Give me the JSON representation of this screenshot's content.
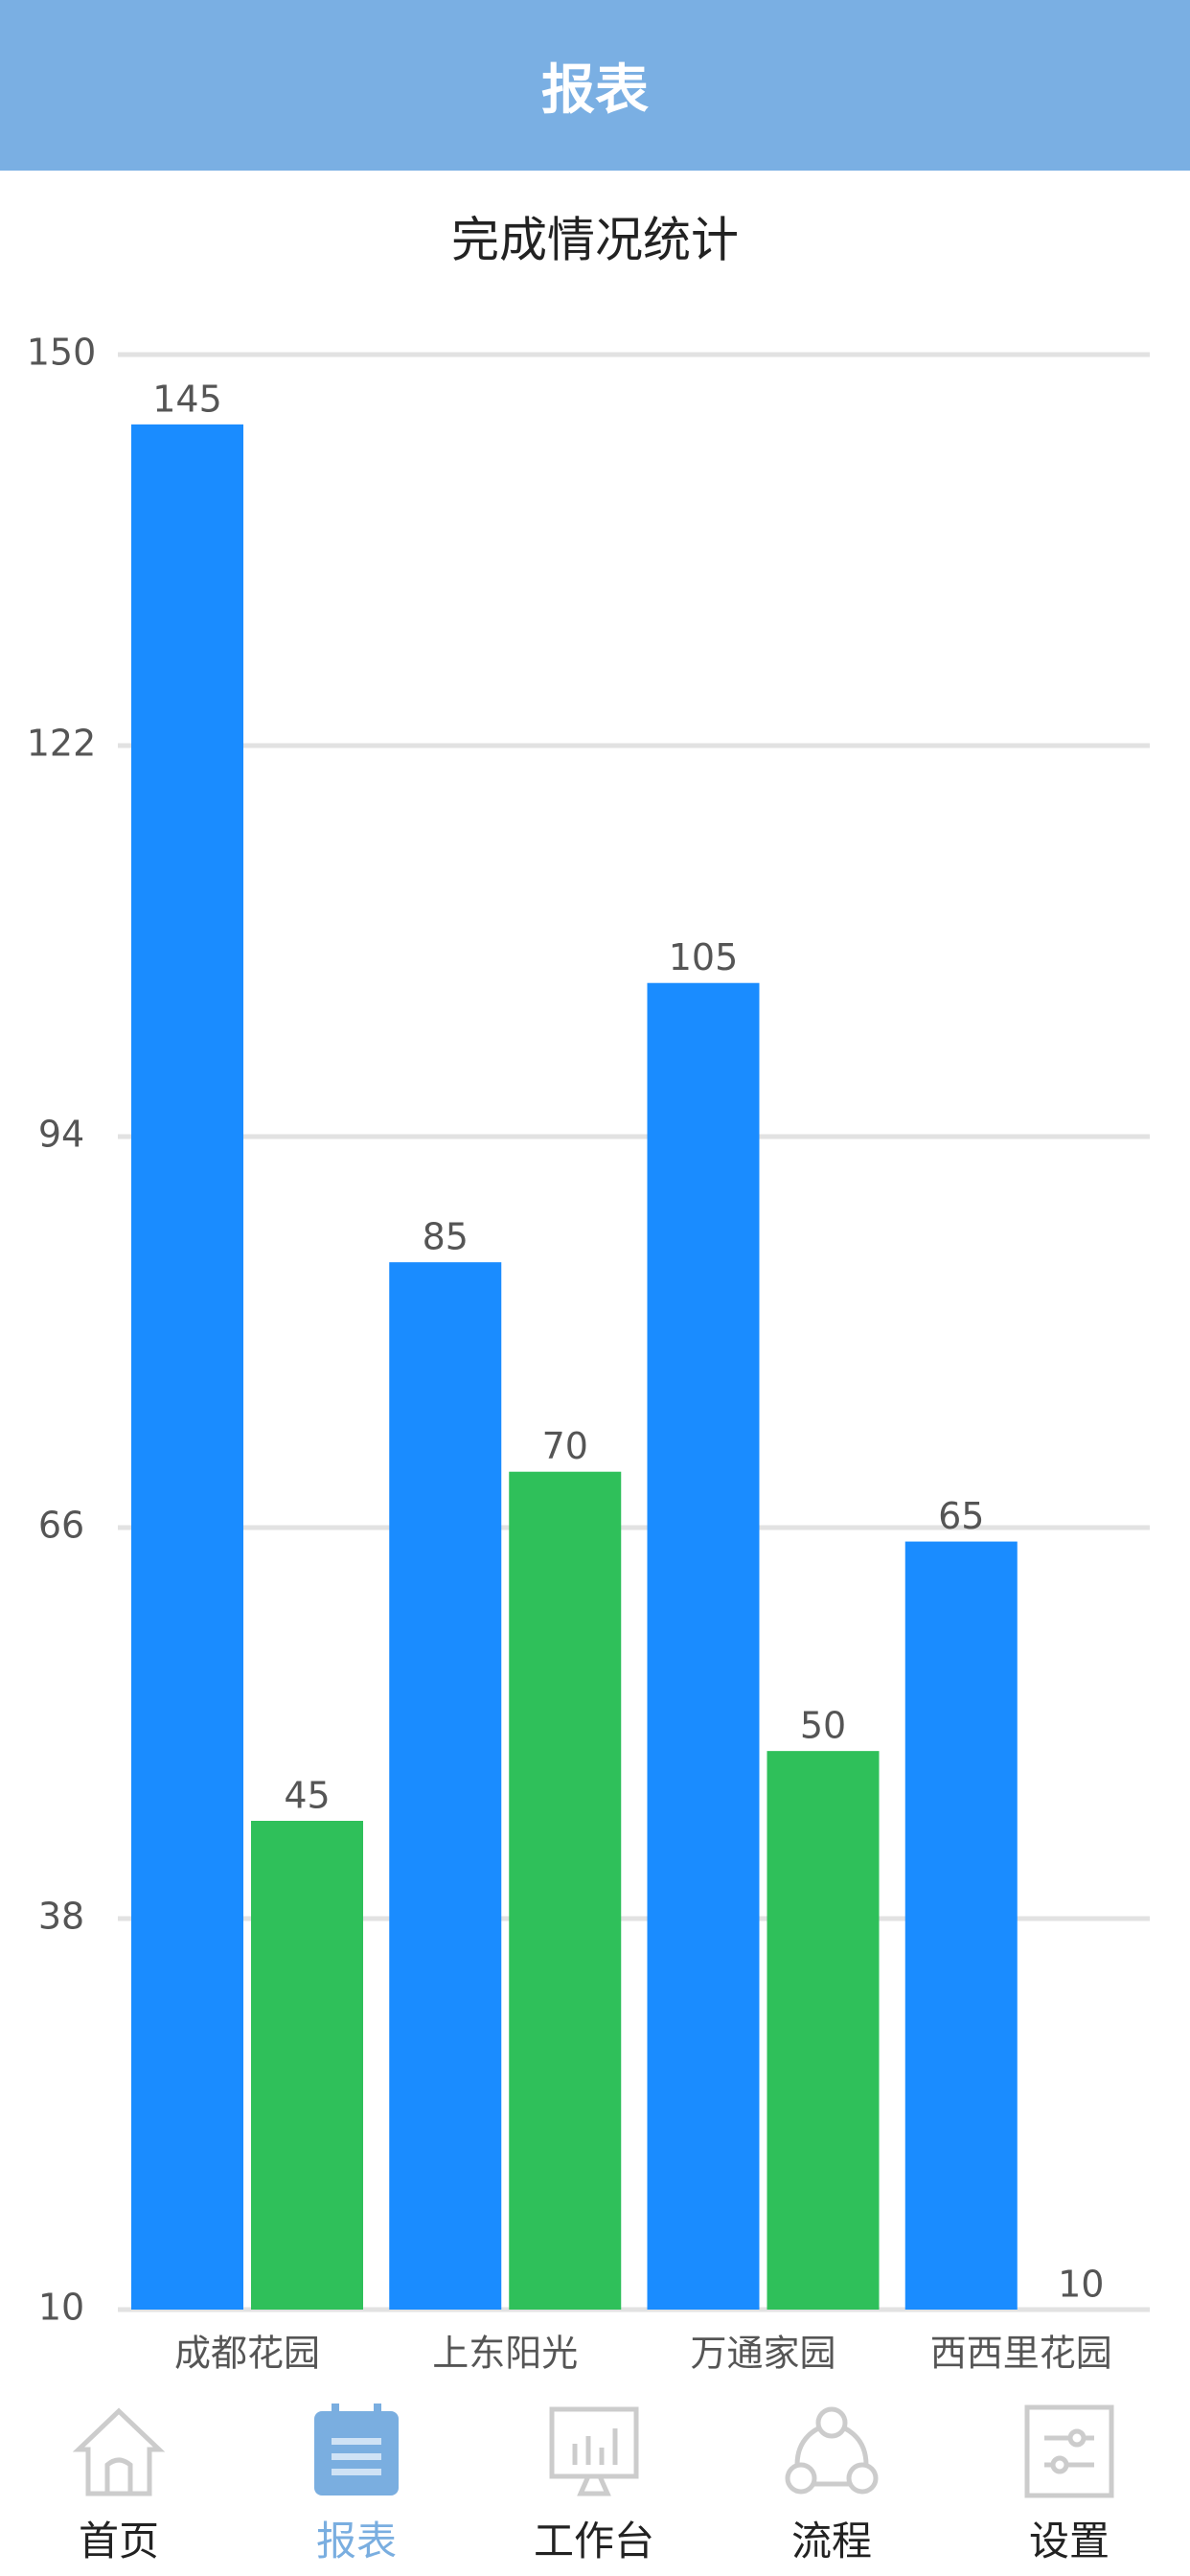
{
  "header": {
    "title": "报表"
  },
  "chart_data": {
    "type": "bar",
    "title": "完成情况统计",
    "categories": [
      "成都花园",
      "上东阳光",
      "万通家园",
      "西西里花园"
    ],
    "series": [
      {
        "color": "#1a8cff",
        "values": [
          145,
          85,
          105,
          65
        ]
      },
      {
        "color": "#2fc05a",
        "values": [
          45,
          70,
          50,
          10
        ]
      }
    ],
    "ylim": [
      10,
      150
    ],
    "yticks": [
      10,
      38,
      66,
      94,
      122,
      150
    ],
    "grid": true
  },
  "tab_bar": {
    "items": [
      "首页",
      "报表",
      "工作台",
      "流程",
      "设置"
    ]
  }
}
